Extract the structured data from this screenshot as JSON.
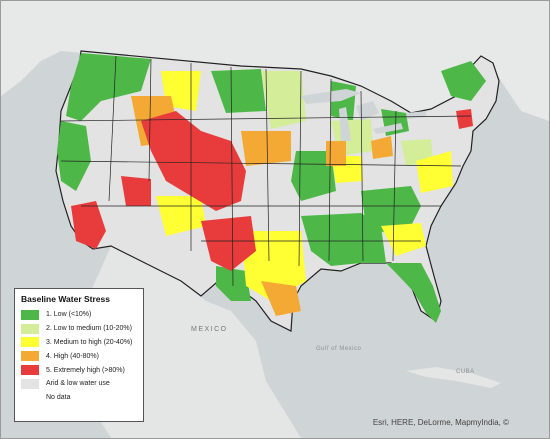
{
  "legend": {
    "title": "Baseline Water Stress",
    "items": [
      {
        "label": "1. Low (<10%)",
        "color": "#4db848"
      },
      {
        "label": "2. Low to medium (10-20%)",
        "color": "#d4ed98"
      },
      {
        "label": "3. Medium to high (20-40%)",
        "color": "#ffff33"
      },
      {
        "label": "4. High (40-80%)",
        "color": "#f5a935"
      },
      {
        "label": "5. Extremely high (>80%)",
        "color": "#e83c3c"
      },
      {
        "label": "Arid & low water use",
        "color": "#e3e3e3"
      },
      {
        "label": "No data",
        "color": "#ffffff"
      }
    ]
  },
  "map_labels": {
    "mexico": "MEXICO",
    "gulf": "Gulf of Mexico",
    "cuba": "CUBA"
  },
  "attribution": "Esri, HERE, DeLorme, MapmyIndia, ©"
}
